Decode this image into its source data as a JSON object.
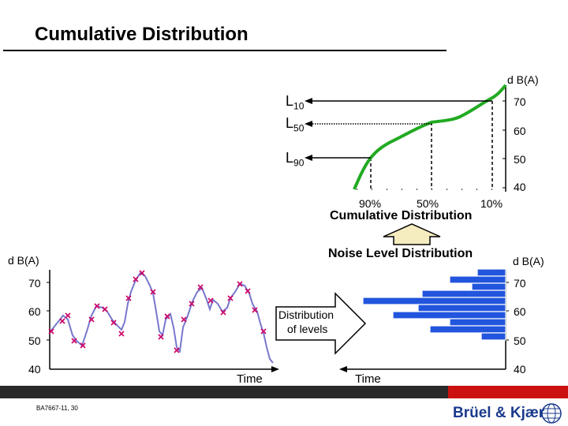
{
  "title": "Cumulative Distribution",
  "cumulative": {
    "unit": "d B(A)",
    "y_ticks": [
      "70",
      "60",
      "50",
      "40"
    ],
    "pct_labels": [
      "90%",
      "50%",
      "10%"
    ],
    "caption": "Cumulative Distribution",
    "level_labels": {
      "l10": {
        "main": "L",
        "sub": "10"
      },
      "l50": {
        "main": "L",
        "sub": "50"
      },
      "l90": {
        "main": "L",
        "sub": "90"
      }
    }
  },
  "time_history": {
    "unit": "d B(A)",
    "y_ticks": [
      "70",
      "60",
      "50",
      "40"
    ],
    "x_label": "Time"
  },
  "histogram": {
    "title": "Noise Level Distribution",
    "unit": "d B(A)",
    "y_ticks": [
      "70",
      "60",
      "50",
      "40"
    ],
    "x_label": "Time"
  },
  "arrow_label": {
    "line1": "Distribution",
    "line2": "of levels"
  },
  "footer": {
    "ref": "BA7667-11, 30",
    "logo": "Brüel & Kjær"
  },
  "colors": {
    "curve": "#22aa22",
    "time_line": "#7777cc",
    "markers": "#cc0066",
    "bars": "#2255dd",
    "arrow_up": "#f5ecc0"
  }
}
